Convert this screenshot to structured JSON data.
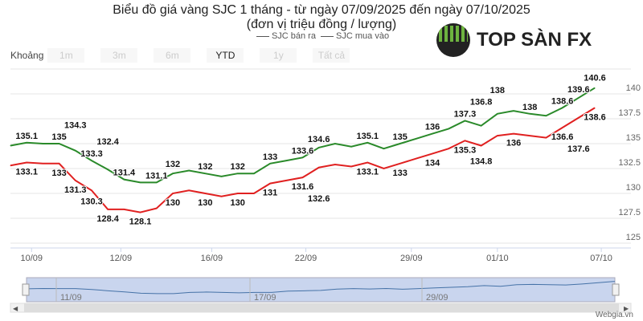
{
  "header": {
    "title": "Biểu đồ giá vàng SJC 1 tháng - từ ngày 07/09/2025 đến ngày 07/10/2025",
    "subtitle": "(đơn vị triệu đồng / lượng)"
  },
  "range_selector": {
    "label": "Khoảng",
    "buttons": [
      "1m",
      "3m",
      "6m",
      "YTD",
      "1y",
      "Tất cả"
    ],
    "selected": "YTD"
  },
  "logo": {
    "text": "TOP SÀN FX"
  },
  "watermark": "Webgia.vn",
  "navigator": {
    "labels": [
      "11/09",
      "17/09",
      "29/09"
    ]
  },
  "chart_data": {
    "type": "line",
    "title": "Biểu đồ giá vàng SJC 1 tháng - từ ngày 07/09/2025 đến ngày 07/10/2025",
    "ylabel": "triệu đồng / lượng",
    "ylim": [
      125,
      142.5
    ],
    "yticks": [
      125,
      127.5,
      130,
      132.5,
      135,
      137.5,
      140
    ],
    "xticks": [
      {
        "label": "10/09",
        "i": 1.3
      },
      {
        "label": "12/09",
        "i": 6.8
      },
      {
        "label": "16/09",
        "i": 12.4
      },
      {
        "label": "22/09",
        "i": 18.2
      },
      {
        "label": "29/09",
        "i": 24.7
      },
      {
        "label": "01/10",
        "i": 30
      },
      {
        "label": "07/10",
        "i": 36.4
      }
    ],
    "legend": "top-center",
    "series": [
      {
        "name": "SJC bán ra",
        "color": "#2a8a2a",
        "values": [
          134.8,
          135.1,
          135,
          135,
          134.3,
          133.3,
          132.4,
          131.4,
          131.1,
          131.1,
          132,
          132.3,
          132,
          131.7,
          132,
          132,
          133,
          133.3,
          133.6,
          134.6,
          135,
          134.7,
          135.1,
          134.5,
          135,
          135.5,
          136,
          136.5,
          137.3,
          136.8,
          138,
          138.3,
          138,
          137.8,
          138.6,
          139.6,
          140.6
        ],
        "labels": [
          null,
          "135.1",
          null,
          "135",
          "134.3",
          "133.3",
          "132.4",
          "131.4",
          null,
          "131.1",
          "132",
          null,
          "132",
          null,
          "132",
          null,
          "133",
          null,
          "133.6",
          "134.6",
          null,
          null,
          "135.1",
          null,
          "135",
          null,
          "136",
          null,
          "137.3",
          "136.8",
          "138",
          null,
          "138",
          null,
          "138.6",
          "139.6",
          "140.6"
        ]
      },
      {
        "name": "SJC mua vào",
        "color": "#e02020",
        "values": [
          132.8,
          133.1,
          133,
          133,
          131.3,
          130.3,
          128.4,
          128.4,
          128.1,
          128.5,
          130,
          130.3,
          130,
          129.7,
          130,
          130,
          131,
          131.3,
          131.6,
          132.6,
          132.9,
          132.7,
          133.1,
          132.5,
          133,
          133.5,
          134,
          134.5,
          135.3,
          134.8,
          135.8,
          136,
          135.8,
          135.6,
          136.6,
          137.6,
          138.6
        ],
        "labels": [
          null,
          "133.1",
          null,
          "133",
          "131.3",
          "130.3",
          "128.4",
          null,
          "128.1",
          null,
          "130",
          null,
          "130",
          null,
          "130",
          null,
          "131",
          null,
          "131.6",
          "132.6",
          null,
          null,
          "133.1",
          null,
          "133",
          null,
          "134",
          null,
          "135.3",
          "134.8",
          null,
          "136",
          null,
          null,
          "136.6",
          "137.6",
          "138.6"
        ]
      }
    ]
  }
}
